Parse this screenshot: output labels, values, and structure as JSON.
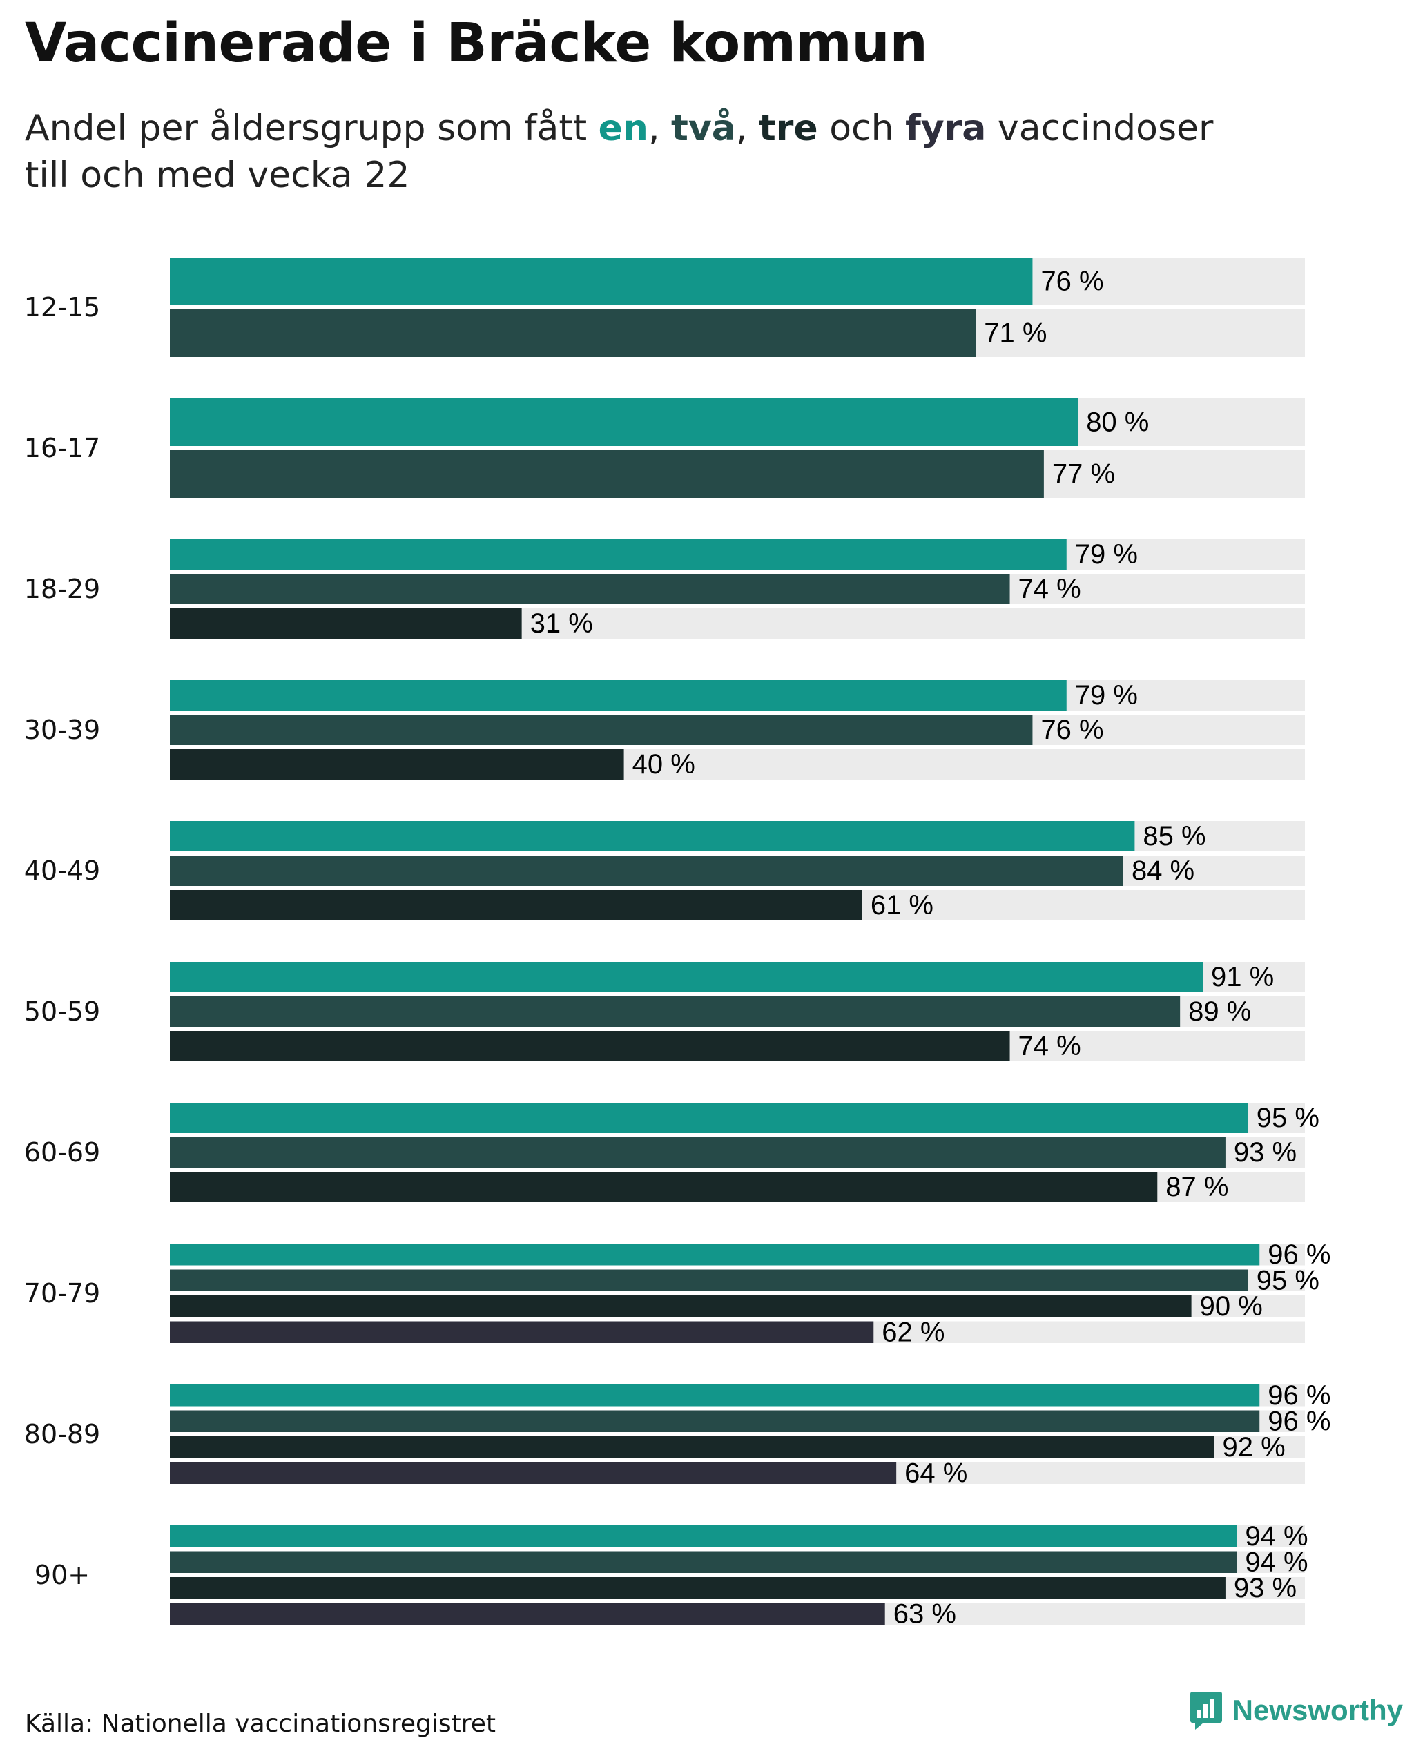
{
  "title": "Vaccinerade i Bräcke kommun",
  "subtitle": {
    "part1": "Andel per åldersgrupp som fått ",
    "dose1": "en",
    "sep1": ", ",
    "dose2": "två",
    "sep2": ", ",
    "dose3": "tre",
    "sep3": " och ",
    "dose4": "fyra",
    "part2": " vaccindoser",
    "line2": "till och med vecka 22"
  },
  "colors": {
    "dose1": "#12968a",
    "dose2": "#264a48",
    "dose3": "#182828",
    "dose4": "#2e2e3c",
    "track": "#ebebeb",
    "brand": "#2a9d8a"
  },
  "chart_data": {
    "type": "bar",
    "orientation": "horizontal",
    "unit": "%",
    "xlim": [
      0,
      100
    ],
    "categories": [
      "12-15",
      "16-17",
      "18-29",
      "30-39",
      "40-49",
      "50-59",
      "60-69",
      "70-79",
      "80-89",
      "90+"
    ],
    "series": [
      {
        "name": "en",
        "values": [
          76,
          80,
          79,
          79,
          85,
          91,
          95,
          96,
          96,
          94
        ]
      },
      {
        "name": "två",
        "values": [
          71,
          77,
          74,
          76,
          84,
          89,
          93,
          95,
          96,
          94
        ]
      },
      {
        "name": "tre",
        "values": [
          null,
          null,
          31,
          40,
          61,
          74,
          87,
          90,
          92,
          93
        ]
      },
      {
        "name": "fyra",
        "values": [
          null,
          null,
          null,
          null,
          null,
          null,
          null,
          62,
          64,
          63
        ]
      }
    ]
  },
  "footer": {
    "source": "Källa: Nationella vaccinationsregistret",
    "brand": "Newsworthy",
    "brand_icon": "newsworthy-logo-icon"
  }
}
